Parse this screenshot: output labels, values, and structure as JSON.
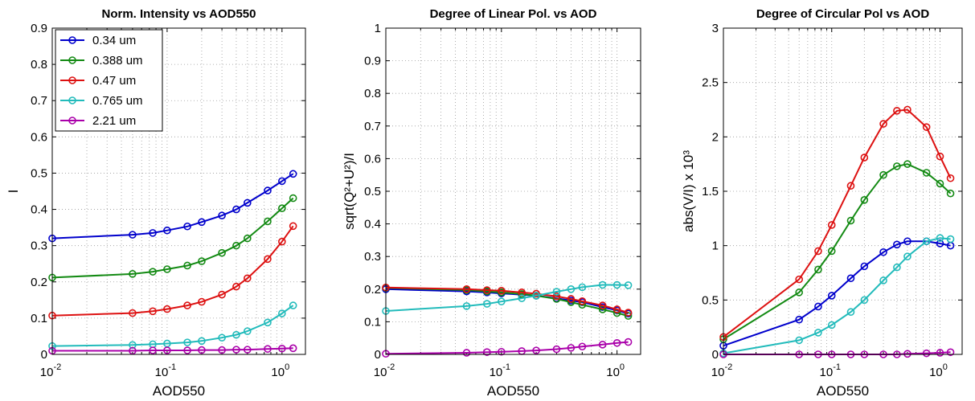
{
  "chart_data": [
    {
      "type": "line",
      "title": "Norm. Intensity vs AOD550",
      "xlabel": "AOD550",
      "ylabel": "I",
      "xscale": "log",
      "xlim": [
        0.01,
        1.6
      ],
      "ylim": [
        0,
        0.9
      ],
      "yticks": [
        0,
        0.1,
        0.2,
        0.3,
        0.4,
        0.5,
        0.6,
        0.7,
        0.8,
        0.9
      ],
      "grid": true,
      "legend": "top-left",
      "x": [
        0.01,
        0.05,
        0.075,
        0.1,
        0.15,
        0.2,
        0.3,
        0.4,
        0.5,
        0.75,
        1.0,
        1.25
      ],
      "series": [
        {
          "name": "0.34 um",
          "color": "#0000cc",
          "values": [
            0.32,
            0.33,
            0.335,
            0.342,
            0.353,
            0.365,
            0.383,
            0.4,
            0.418,
            0.452,
            0.478,
            0.498
          ]
        },
        {
          "name": "0.388 um",
          "color": "#138a13",
          "values": [
            0.212,
            0.222,
            0.228,
            0.235,
            0.245,
            0.257,
            0.28,
            0.3,
            0.32,
            0.367,
            0.403,
            0.431
          ]
        },
        {
          "name": "0.47 um",
          "color": "#dd1111",
          "values": [
            0.107,
            0.114,
            0.119,
            0.125,
            0.135,
            0.145,
            0.165,
            0.187,
            0.21,
            0.263,
            0.311,
            0.354
          ]
        },
        {
          "name": "0.765 um",
          "color": "#22bbbb",
          "values": [
            0.023,
            0.026,
            0.028,
            0.03,
            0.033,
            0.037,
            0.046,
            0.054,
            0.064,
            0.088,
            0.113,
            0.135
          ]
        },
        {
          "name": "2.21 um",
          "color": "#aa00aa",
          "values": [
            0.01,
            0.01,
            0.011,
            0.011,
            0.011,
            0.012,
            0.012,
            0.013,
            0.013,
            0.015,
            0.016,
            0.017
          ]
        }
      ]
    },
    {
      "type": "line",
      "title": "Degree of Linear Pol. vs AOD",
      "xlabel": "AOD550",
      "ylabel": "sqrt(Q²+U²)/I",
      "xscale": "log",
      "xlim": [
        0.01,
        1.6
      ],
      "ylim": [
        0,
        1
      ],
      "yticks": [
        0,
        0.1,
        0.2,
        0.3,
        0.4,
        0.5,
        0.6,
        0.7,
        0.8,
        0.9,
        1
      ],
      "grid": true,
      "x": [
        0.01,
        0.05,
        0.075,
        0.1,
        0.15,
        0.2,
        0.3,
        0.4,
        0.5,
        0.75,
        1.0,
        1.25
      ],
      "series": [
        {
          "name": "0.34 um",
          "color": "#0000cc",
          "values": [
            0.2,
            0.193,
            0.19,
            0.187,
            0.183,
            0.18,
            0.172,
            0.165,
            0.16,
            0.145,
            0.135,
            0.125
          ]
        },
        {
          "name": "0.388 um",
          "color": "#138a13",
          "values": [
            0.204,
            0.197,
            0.193,
            0.19,
            0.185,
            0.18,
            0.17,
            0.16,
            0.152,
            0.138,
            0.127,
            0.118
          ]
        },
        {
          "name": "0.47 um",
          "color": "#dd1111",
          "values": [
            0.205,
            0.2,
            0.197,
            0.195,
            0.19,
            0.186,
            0.178,
            0.17,
            0.163,
            0.15,
            0.138,
            0.128
          ]
        },
        {
          "name": "0.765 um",
          "color": "#22bbbb",
          "values": [
            0.133,
            0.148,
            0.155,
            0.162,
            0.172,
            0.18,
            0.192,
            0.2,
            0.206,
            0.213,
            0.213,
            0.212
          ]
        },
        {
          "name": "2.21 um",
          "color": "#aa00aa",
          "values": [
            0.002,
            0.005,
            0.007,
            0.008,
            0.01,
            0.012,
            0.016,
            0.02,
            0.024,
            0.03,
            0.035,
            0.038
          ]
        }
      ]
    },
    {
      "type": "line",
      "title": "Degree of Circular Pol vs AOD",
      "xlabel": "AOD550",
      "ylabel": "abs(V/I) x 10³",
      "xscale": "log",
      "xlim": [
        0.01,
        1.6
      ],
      "ylim": [
        0,
        3
      ],
      "yticks": [
        0,
        0.5,
        1,
        1.5,
        2,
        2.5,
        3
      ],
      "grid": true,
      "x": [
        0.01,
        0.05,
        0.075,
        0.1,
        0.15,
        0.2,
        0.3,
        0.4,
        0.5,
        0.75,
        1.0,
        1.25
      ],
      "series": [
        {
          "name": "0.34 um",
          "color": "#0000cc",
          "values": [
            0.08,
            0.32,
            0.44,
            0.54,
            0.7,
            0.81,
            0.94,
            1.01,
            1.04,
            1.04,
            1.02,
            1.0
          ]
        },
        {
          "name": "0.388 um",
          "color": "#138a13",
          "values": [
            0.14,
            0.57,
            0.78,
            0.95,
            1.23,
            1.42,
            1.65,
            1.73,
            1.75,
            1.67,
            1.57,
            1.48
          ]
        },
        {
          "name": "0.47 um",
          "color": "#dd1111",
          "values": [
            0.16,
            0.69,
            0.95,
            1.19,
            1.55,
            1.81,
            2.12,
            2.24,
            2.25,
            2.09,
            1.82,
            1.62
          ]
        },
        {
          "name": "0.765 um",
          "color": "#22bbbb",
          "values": [
            0.01,
            0.13,
            0.2,
            0.27,
            0.39,
            0.5,
            0.68,
            0.8,
            0.9,
            1.04,
            1.07,
            1.06
          ]
        },
        {
          "name": "2.21 um",
          "color": "#aa00aa",
          "values": [
            0.0,
            0.0,
            0.0,
            0.0,
            0.0,
            0.0,
            0.0,
            0.0,
            0.005,
            0.01,
            0.015,
            0.02
          ]
        }
      ]
    }
  ]
}
